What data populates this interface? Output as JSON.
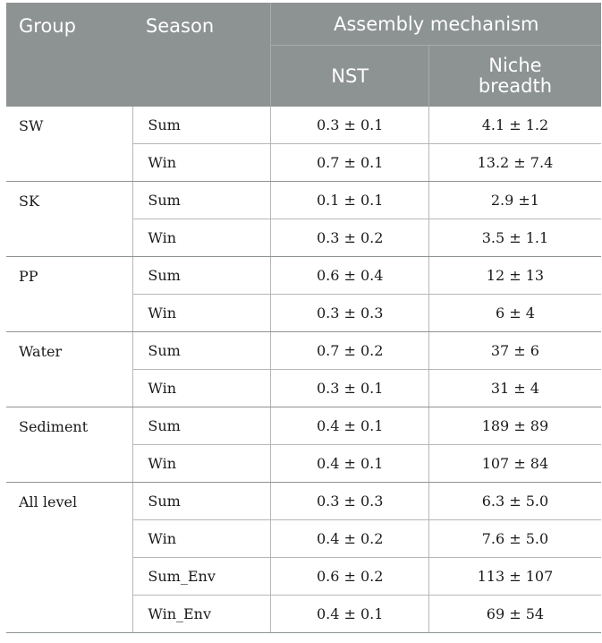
{
  "header": {
    "group": "Group",
    "season": "Season",
    "assembly": "Assembly mechanism",
    "nst": "NST",
    "niche_line1": "Niche",
    "niche_line2": "breadth"
  },
  "groups": [
    {
      "name": "SW",
      "rows": [
        {
          "season": "Sum",
          "nst": "0.3 ± 0.1",
          "niche": "4.1 ± 1.2"
        },
        {
          "season": "Win",
          "nst": "0.7 ± 0.1",
          "niche": "13.2 ± 7.4"
        }
      ]
    },
    {
      "name": "SK",
      "rows": [
        {
          "season": "Sum",
          "nst": "0.1 ± 0.1",
          "niche": "2.9 ±1"
        },
        {
          "season": "Win",
          "nst": "0.3 ± 0.2",
          "niche": "3.5 ± 1.1"
        }
      ]
    },
    {
      "name": "PP",
      "rows": [
        {
          "season": "Sum",
          "nst": "0.6 ± 0.4",
          "niche": "12 ± 13"
        },
        {
          "season": "Win",
          "nst": "0.3 ± 0.3",
          "niche": "6 ± 4"
        }
      ]
    },
    {
      "name": "Water",
      "rows": [
        {
          "season": "Sum",
          "nst": "0.7 ± 0.2",
          "niche": "37 ± 6"
        },
        {
          "season": "Win",
          "nst": "0.3 ± 0.1",
          "niche": "31 ± 4"
        }
      ]
    },
    {
      "name": "Sediment",
      "rows": [
        {
          "season": "Sum",
          "nst": "0.4 ± 0.1",
          "niche": "189 ± 89"
        },
        {
          "season": "Win",
          "nst": "0.4 ± 0.1",
          "niche": "107 ± 84"
        }
      ]
    },
    {
      "name": "All level",
      "rows": [
        {
          "season": "Sum",
          "nst": "0.3 ± 0.3",
          "niche": "6.3 ± 5.0"
        },
        {
          "season": "Win",
          "nst": "0.4 ± 0.2",
          "niche": "7.6 ± 5.0"
        },
        {
          "season": "Sum_Env",
          "nst": "0.6 ± 0.2",
          "niche": "113 ± 107"
        },
        {
          "season": "Win_Env",
          "nst": "0.4 ± 0.1",
          "niche": "69 ± 54"
        }
      ]
    }
  ]
}
